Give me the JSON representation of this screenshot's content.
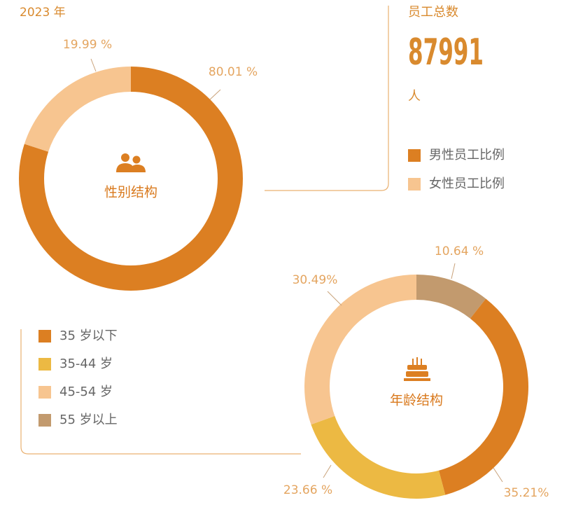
{
  "year": "2023 年",
  "total": {
    "label": "员工总数",
    "value": 87991,
    "unit": "人"
  },
  "chart_data": [
    {
      "type": "pie",
      "title": "性别结构",
      "categories": [
        "男性员工比例",
        "女性员工比例"
      ],
      "values": [
        80.01,
        19.99
      ],
      "value_labels": [
        "80.01 %",
        "19.99 %"
      ],
      "colors": [
        "#dc7f22",
        "#f7c590"
      ]
    },
    {
      "type": "pie",
      "title": "年龄结构",
      "categories": [
        "55 岁以上",
        "35 岁以下",
        "35-44 岁",
        "45-54 岁"
      ],
      "values": [
        10.64,
        35.21,
        23.66,
        30.49
      ],
      "value_labels": [
        "10.64 %",
        "35.21%",
        "23.66 %",
        "30.49%"
      ],
      "colors": [
        "#c29a6e",
        "#dc7f22",
        "#ecb943",
        "#f7c590"
      ]
    }
  ]
}
